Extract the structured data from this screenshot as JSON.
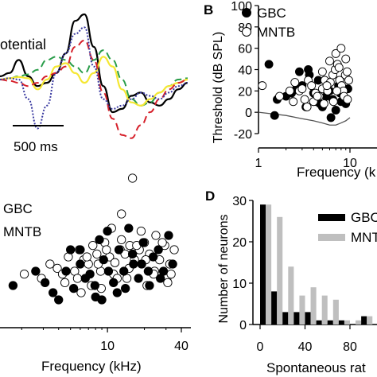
{
  "panels": {
    "A": {
      "label": "",
      "fragment_text": "otential",
      "scale_label": "500 ms"
    },
    "B": {
      "label": "B"
    },
    "C": {
      "label": ""
    },
    "D": {
      "label": "D"
    }
  },
  "colors": {
    "gbc": "#000000",
    "mntb": "#ffffff",
    "trace_black": "#000000",
    "trace_green": "#2a9d4a",
    "trace_yellow": "#f5e733",
    "trace_red": "#d6202a",
    "trace_blue": "#3a3aa0",
    "hist_gbc": "#000000",
    "hist_mntb": "#bfbfbf"
  },
  "chart_data": [
    {
      "panel": "A",
      "type": "line",
      "title": "",
      "xlabel": "",
      "ylabel": "",
      "text_fragment": "otential",
      "scalebar": "500 ms",
      "series": [
        {
          "style": "solid",
          "color": "#000000",
          "x": [
            0,
            0.05,
            0.1,
            0.15,
            0.2,
            0.25,
            0.3,
            0.35,
            0.4,
            0.45,
            0.5,
            0.55,
            0.6,
            0.65,
            0.7,
            0.75,
            0.8,
            0.85,
            0.9,
            0.95,
            1.0
          ],
          "y": [
            0.05,
            0.1,
            0.3,
            0.05,
            -0.1,
            -0.05,
            0.1,
            0.4,
            0.9,
            1.0,
            0.5,
            -0.1,
            -0.5,
            -0.45,
            -0.25,
            -0.2,
            -0.35,
            -0.4,
            -0.3,
            -0.15,
            -0.05
          ]
        },
        {
          "style": "dashed",
          "color": "#2a9d4a",
          "x": [
            0,
            0.05,
            0.1,
            0.15,
            0.2,
            0.25,
            0.3,
            0.35,
            0.4,
            0.45,
            0.5,
            0.55,
            0.6,
            0.65,
            0.7,
            0.75,
            0.8,
            0.85,
            0.9,
            0.95,
            1.0
          ],
          "y": [
            0,
            0.02,
            0.05,
            0.08,
            0.15,
            0.3,
            0.35,
            0.3,
            0.2,
            0.1,
            0.3,
            0.45,
            0.3,
            0.0,
            -0.3,
            -0.4,
            -0.35,
            -0.2,
            -0.1,
            0.0,
            0.02
          ]
        },
        {
          "style": "solid",
          "color": "#f5e733",
          "x": [
            0,
            0.05,
            0.1,
            0.15,
            0.2,
            0.25,
            0.3,
            0.35,
            0.4,
            0.45,
            0.5,
            0.55,
            0.6,
            0.65,
            0.7,
            0.75,
            0.8,
            0.85,
            0.9,
            0.95,
            1.0
          ],
          "y": [
            0,
            0.02,
            0.04,
            0.02,
            -0.15,
            0.0,
            0.2,
            0.25,
            0.1,
            -0.05,
            0.1,
            0.35,
            0.2,
            -0.15,
            -0.35,
            -0.4,
            -0.3,
            -0.2,
            -0.1,
            -0.05,
            0.0
          ]
        },
        {
          "style": "dashed",
          "color": "#d6202a",
          "x": [
            0,
            0.05,
            0.1,
            0.15,
            0.2,
            0.25,
            0.3,
            0.35,
            0.4,
            0.45,
            0.5,
            0.55,
            0.6,
            0.65,
            0.7,
            0.75,
            0.8,
            0.85,
            0.9,
            0.95,
            1.0
          ],
          "y": [
            0,
            -0.02,
            -0.05,
            -0.1,
            -0.05,
            0.05,
            0.1,
            0.2,
            0.5,
            0.6,
            0.3,
            -0.2,
            -0.6,
            -0.85,
            -0.9,
            -0.7,
            -0.5,
            -0.3,
            -0.15,
            -0.05,
            0.0
          ]
        },
        {
          "style": "dotted",
          "color": "#3a3aa0",
          "x": [
            0,
            0.05,
            0.1,
            0.15,
            0.2,
            0.25,
            0.3,
            0.35,
            0.4,
            0.45,
            0.5,
            0.55,
            0.6,
            0.65,
            0.7,
            0.75,
            0.8,
            0.85,
            0.9,
            0.95,
            1.0
          ],
          "y": [
            0,
            0.02,
            0.0,
            -0.3,
            -0.75,
            -0.4,
            0.1,
            0.4,
            0.7,
            0.8,
            0.2,
            -0.3,
            -0.45,
            -0.4,
            -0.3,
            -0.2,
            -0.25,
            -0.3,
            -0.2,
            -0.1,
            -0.05
          ]
        }
      ]
    },
    {
      "panel": "B",
      "type": "scatter",
      "title": "",
      "xlabel": "Frequency (k",
      "ylabel": "Threshold (dB SPL)",
      "xscale": "log",
      "xlim": [
        1,
        10
      ],
      "ylim": [
        -20,
        100
      ],
      "xticks": [
        1,
        10
      ],
      "xticklabels": [
        "1",
        "10"
      ],
      "yticks": [
        -20,
        0,
        20,
        40,
        60,
        80,
        100
      ],
      "legend": {
        "position": "top-left",
        "entries": [
          "GBC",
          "MNTB"
        ]
      },
      "series": [
        {
          "name": "GBC",
          "marker": "filled-circle",
          "x": [
            1.3,
            1.5,
            1.6,
            2.0,
            2.3,
            2.6,
            3.0,
            3.3,
            3.6,
            4.0,
            4.3,
            4.7,
            5.0,
            5.5,
            6.0,
            6.5,
            7.0,
            7.5,
            8.0,
            8.5,
            9.0,
            9.5,
            3.5,
            4.5,
            6.2,
            7.8,
            2.8,
            5.8
          ],
          "y": [
            45,
            -3,
            12,
            15,
            18,
            22,
            25,
            5,
            35,
            18,
            10,
            8,
            5,
            15,
            20,
            12,
            2,
            25,
            10,
            15,
            8,
            22,
            40,
            30,
            -5,
            18,
            38,
            28
          ]
        },
        {
          "name": "MNTB",
          "marker": "open-circle",
          "x": [
            1.1,
            1.7,
            2.2,
            2.5,
            2.8,
            3.2,
            3.5,
            3.8,
            4.2,
            4.6,
            5.0,
            5.3,
            5.7,
            6.1,
            6.5,
            6.9,
            7.3,
            7.7,
            8.1,
            8.5,
            8.9,
            9.3,
            9.7,
            4.0,
            5.0,
            6.0,
            7.0,
            8.0,
            9.0,
            3.0,
            4.4,
            5.6,
            6.6,
            7.6,
            8.6,
            2.4,
            3.4,
            5.2,
            7.2,
            9.4
          ],
          "y": [
            25,
            15,
            20,
            28,
            20,
            12,
            30,
            25,
            18,
            15,
            22,
            30,
            20,
            28,
            35,
            40,
            45,
            30,
            25,
            20,
            35,
            38,
            30,
            10,
            38,
            48,
            55,
            60,
            50,
            22,
            15,
            25,
            10,
            42,
            15,
            10,
            5,
            8,
            20,
            12
          ]
        }
      ],
      "threshold_curve": {
        "x": [
          1.0,
          2.0,
          3.0,
          4.0,
          5.0,
          6.0,
          7.0,
          8.0,
          9.0,
          10.0
        ],
        "y": [
          0,
          -3,
          -6,
          -8,
          -10,
          -12,
          -12,
          -10,
          -8,
          -5
        ]
      }
    },
    {
      "panel": "C",
      "type": "scatter",
      "title": "",
      "xlabel": "Frequency (kHz)",
      "ylabel": "",
      "xscale": "log",
      "xlim": [
        1.5,
        40
      ],
      "ylim": [
        0,
        100
      ],
      "xticks": [
        10,
        40
      ],
      "xticklabels": [
        "10",
        "40"
      ],
      "legend": {
        "position": "top-left",
        "entries": [
          "GBC",
          "MNTB"
        ]
      },
      "series": [
        {
          "name": "GBC",
          "marker": "filled-circle",
          "x": [
            1.7,
            2.6,
            3.1,
            4.0,
            4.6,
            5.3,
            6.0,
            6.6,
            7.2,
            7.9,
            8.6,
            9.3,
            10.2,
            11.2,
            12.4,
            13.6,
            14.9,
            16.3,
            17.9,
            19.6,
            21.5,
            23.6,
            26.0,
            28.6,
            31.5,
            34.0,
            5.0,
            8.0,
            12.0,
            16.0,
            22.0,
            10.0,
            6.0,
            14.0,
            19.0,
            9.0,
            3.6,
            27.0
          ],
          "y": [
            20,
            30,
            22,
            10,
            30,
            18,
            35,
            25,
            28,
            20,
            52,
            38,
            30,
            22,
            45,
            30,
            60,
            35,
            25,
            50,
            30,
            40,
            45,
            30,
            55,
            35,
            45,
            12,
            15,
            42,
            20,
            58,
            45,
            18,
            35,
            10,
            15,
            25
          ]
        },
        {
          "name": "MNTB",
          "marker": "open-circle",
          "x": [
            2.1,
            2.9,
            3.4,
            3.9,
            4.3,
            4.8,
            5.4,
            5.9,
            6.4,
            7.0,
            7.6,
            8.2,
            8.8,
            9.5,
            10.4,
            11.5,
            12.7,
            13.9,
            15.2,
            16.6,
            18.2,
            20.0,
            22.0,
            24.2,
            26.6,
            29.3,
            32.2,
            35.0,
            4.5,
            5.7,
            6.8,
            8.4,
            9.8,
            11.2,
            13.0,
            15.0,
            17.3,
            20.5,
            23.8,
            28.0,
            7.4,
            10.8,
            14.4,
            18.8,
            24.8,
            30.5,
            31.0,
            33.0,
            16.0,
            13.0,
            8.9,
            6.1,
            12.0,
            21.0
          ],
          "y": [
            28,
            25,
            35,
            32,
            28,
            40,
            30,
            45,
            38,
            35,
            48,
            42,
            30,
            50,
            40,
            36,
            45,
            42,
            48,
            38,
            45,
            50,
            42,
            30,
            38,
            48,
            35,
            45,
            22,
            25,
            40,
            35,
            45,
            28,
            52,
            32,
            48,
            38,
            28,
            50,
            20,
            60,
            25,
            58,
            55,
            25,
            22,
            28,
            95,
            70,
            18,
            15,
            25,
            20
          ]
        }
      ]
    },
    {
      "panel": "D",
      "type": "bar",
      "title": "",
      "xlabel": "Spontaneous rat",
      "ylabel": "Number of neurons",
      "xlim": [
        0,
        100
      ],
      "ylim": [
        0,
        30
      ],
      "xticks": [
        0,
        40,
        80
      ],
      "yticks": [
        0,
        10,
        20,
        30
      ],
      "bin_width": 10,
      "legend": {
        "position": "top-right",
        "entries": [
          "GBC",
          "MNTB"
        ]
      },
      "categories": [
        0,
        10,
        20,
        30,
        40,
        50,
        60,
        70,
        80,
        90
      ],
      "series": [
        {
          "name": "GBC",
          "values": [
            29,
            8,
            3,
            3,
            3,
            1,
            1,
            1,
            0,
            2
          ]
        },
        {
          "name": "MNTB",
          "values": [
            29,
            26,
            14,
            7,
            9,
            7,
            6,
            1,
            1,
            2
          ]
        }
      ]
    }
  ]
}
